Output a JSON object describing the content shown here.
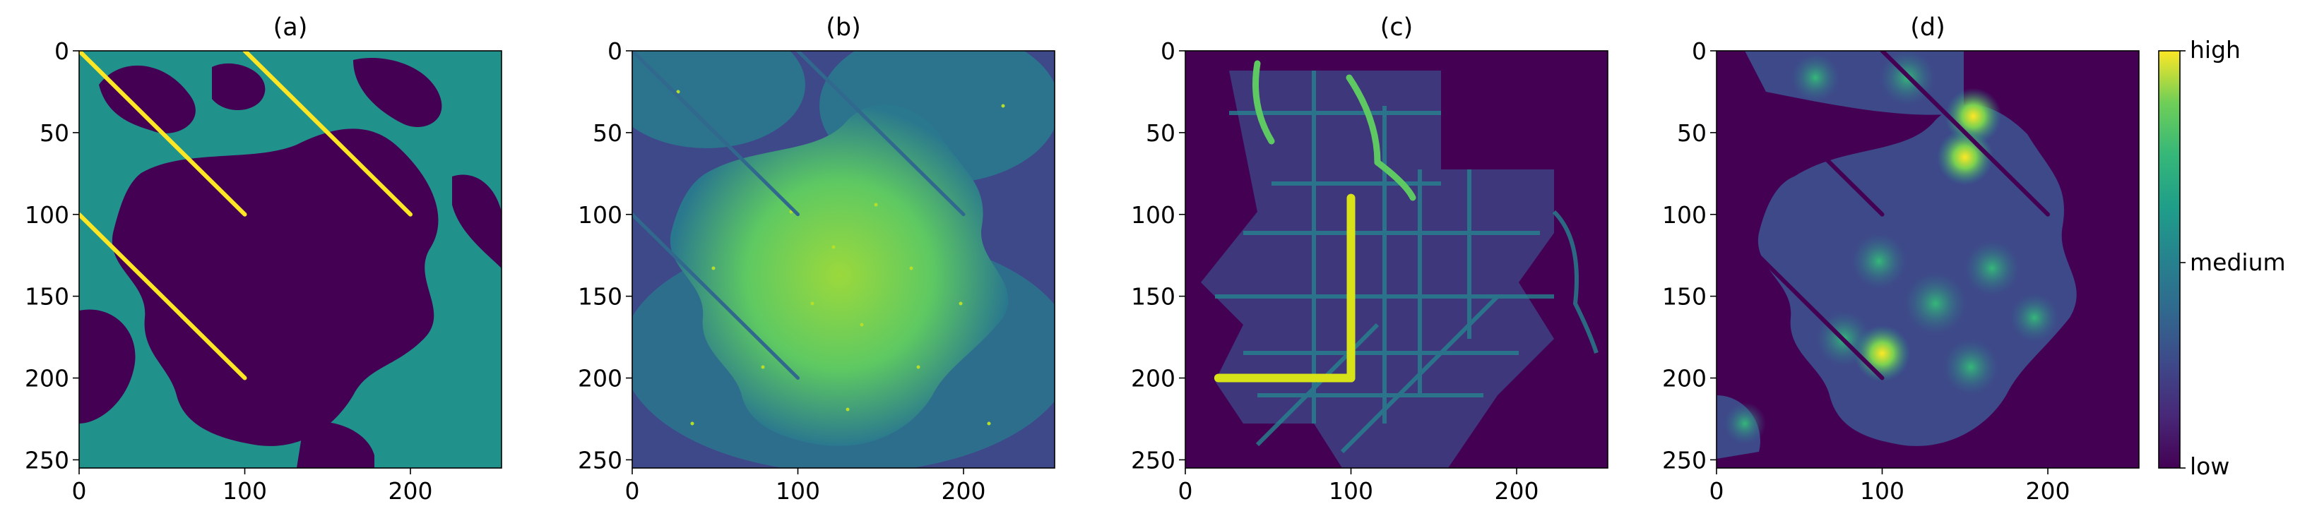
{
  "chart_data": [
    {
      "type": "heatmap",
      "title": "(a)",
      "xlim": [
        0,
        255
      ],
      "ylim": [
        255,
        0
      ],
      "xticks": [
        0,
        100,
        200
      ],
      "yticks": [
        0,
        50,
        100,
        150,
        200,
        250
      ],
      "colormap": "viridis",
      "description_values": {
        "background": 0.5,
        "open_region": 0.0,
        "line_value": 1.0
      },
      "lines": [
        {
          "x": [
            0,
            100
          ],
          "y": [
            0,
            100
          ]
        },
        {
          "x": [
            100,
            200
          ],
          "y": [
            0,
            100
          ]
        },
        {
          "x": [
            0,
            100
          ],
          "y": [
            100,
            200
          ]
        }
      ]
    },
    {
      "type": "heatmap",
      "title": "(b)",
      "xlim": [
        0,
        255
      ],
      "ylim": [
        255,
        0
      ],
      "xticks": [
        0,
        100,
        200
      ],
      "yticks": [
        0,
        50,
        100,
        150,
        200,
        250
      ],
      "colormap": "viridis"
    },
    {
      "type": "heatmap",
      "title": "(c)",
      "xlim": [
        0,
        255
      ],
      "ylim": [
        255,
        0
      ],
      "xticks": [
        0,
        100,
        200
      ],
      "yticks": [
        0,
        50,
        100,
        150,
        200,
        250
      ],
      "colormap": "viridis",
      "paths": [
        {
          "x": [
            100,
            100
          ],
          "y": [
            90,
            200
          ]
        },
        {
          "x": [
            20,
            100
          ],
          "y": [
            200,
            200
          ]
        }
      ]
    },
    {
      "type": "heatmap",
      "title": "(d)",
      "xlim": [
        0,
        255
      ],
      "ylim": [
        255,
        0
      ],
      "xticks": [
        0,
        100,
        200
      ],
      "yticks": [
        0,
        50,
        100,
        150,
        200,
        250
      ],
      "colormap": "viridis",
      "hotspots": [
        {
          "x": 100,
          "y": 185
        },
        {
          "x": 155,
          "y": 40
        },
        {
          "x": 150,
          "y": 65
        }
      ]
    }
  ],
  "colorbar": {
    "labels": [
      "high",
      "medium",
      "low"
    ],
    "colors": [
      "#fde725",
      "#21918c",
      "#440154"
    ]
  }
}
